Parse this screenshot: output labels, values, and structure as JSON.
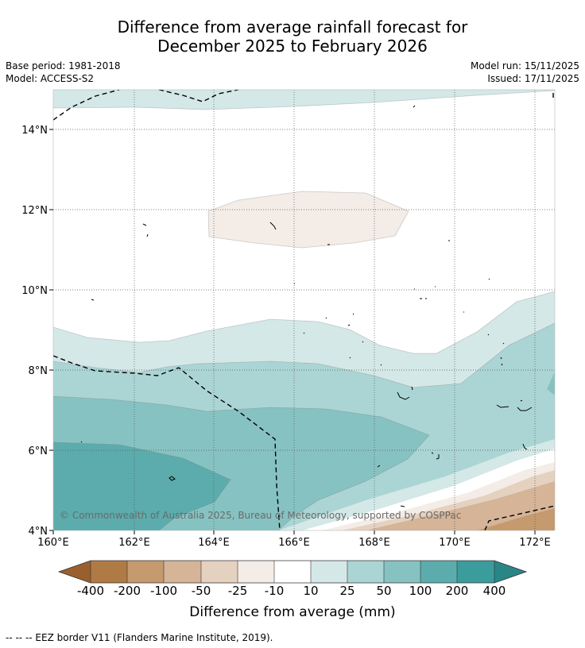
{
  "title": {
    "line1": "Difference from average rainfall forecast for",
    "line2": "December 2025 to February 2026"
  },
  "meta": {
    "base_period": "Base period: 1981-2018",
    "model": "Model: ACCESS-S2",
    "model_run": "Model run: 15/11/2025",
    "issued": "Issued: 17/11/2025"
  },
  "map": {
    "lon_ticks": [
      "160°E",
      "162°E",
      "164°E",
      "166°E",
      "168°E",
      "170°E",
      "172°E"
    ],
    "lat_ticks": [
      "14°N",
      "12°N",
      "10°N",
      "8°N",
      "6°N",
      "4°N"
    ],
    "copyright": "© Commonwealth of Australia 2025, Bureau of Meteorology, supported by COSPPac",
    "colors": {
      "c_neg400": "#9a5f2e",
      "c_neg200": "#b07a45",
      "c_neg100": "#c49a6e",
      "c_neg50": "#d5b497",
      "c_neg25": "#e5d1c0",
      "c_neg10": "#f4ece6",
      "c_zero": "#ffffff",
      "c_10": "#d3e8e7",
      "c_25": "#abd5d4",
      "c_50": "#86c2c1",
      "c_100": "#5cacad",
      "c_200": "#3b9c9c",
      "c_400": "#2a8686"
    }
  },
  "colorbar": {
    "labels": [
      "-400",
      "-200",
      "-100",
      "-50",
      "-25",
      "-10",
      "10",
      "25",
      "50",
      "100",
      "200",
      "400"
    ],
    "title": "Difference from average (mm)"
  },
  "footnote": "--  --  -- EEZ border V11 (Flanders Marine Institute, 2019)."
}
